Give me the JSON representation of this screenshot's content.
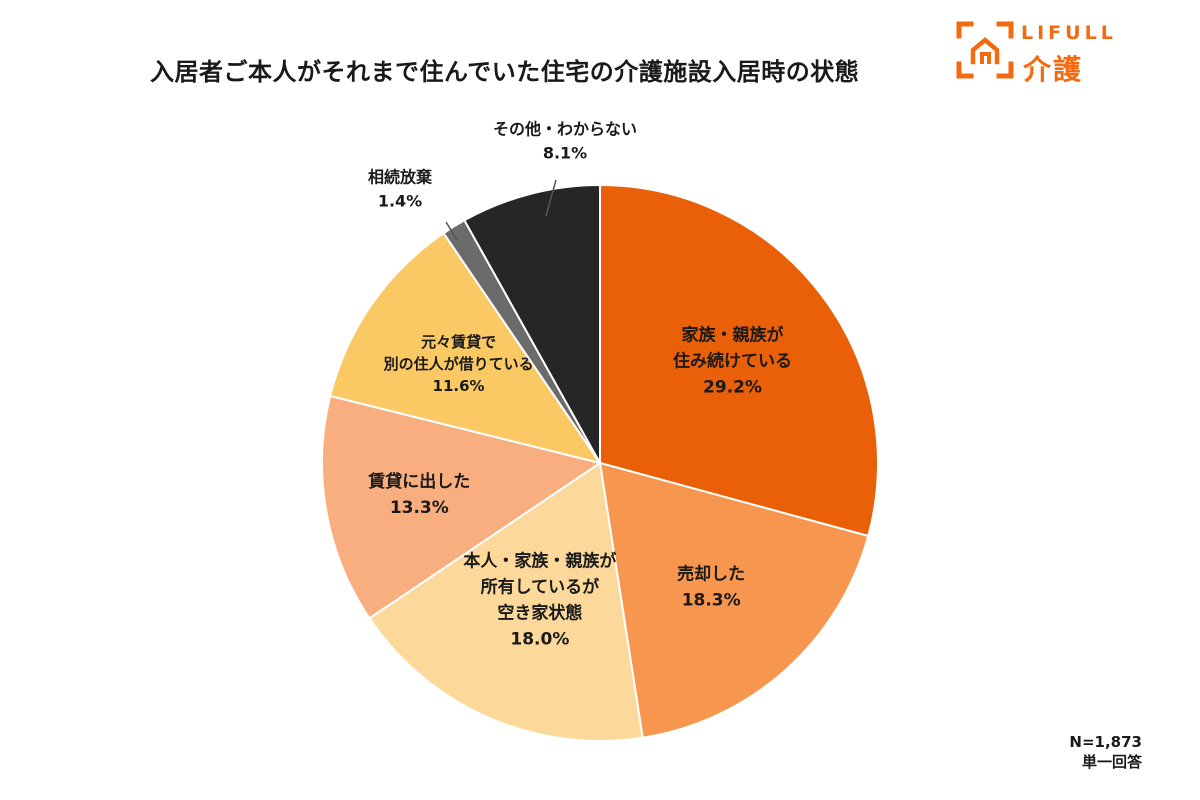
{
  "header": {
    "title": "入居者ご本人がそれまで住んでいた住宅の介護施設入居時の状態"
  },
  "logo": {
    "brand_en": "LIFULL",
    "brand_jp": "介護",
    "icon": "house-bracket-icon",
    "color": "#F36A10"
  },
  "footer": {
    "sample_size": "N=1,873",
    "answer_type": "単一回答"
  },
  "chart_data": {
    "type": "pie",
    "start": "12 o'clock",
    "direction": "clockwise",
    "slices": [
      {
        "lines": [
          "家族・親族が",
          "住み続けている"
        ],
        "value": 29.2,
        "value_label": "29.2%",
        "color": "#EA6008",
        "label_position": "inside"
      },
      {
        "lines": [
          "売却した"
        ],
        "value": 18.3,
        "value_label": "18.3%",
        "color": "#F7964E",
        "label_position": "inside"
      },
      {
        "lines": [
          "本人・家族・親族が",
          "所有しているが",
          "空き家状態"
        ],
        "value": 18.0,
        "value_label": "18.0%",
        "color": "#FCD99A",
        "label_position": "inside"
      },
      {
        "lines": [
          "賃貸に出した"
        ],
        "value": 13.3,
        "value_label": "13.3%",
        "color": "#F9AE80",
        "label_position": "inside"
      },
      {
        "lines": [
          "元々賃貸で",
          "別の住人が借りている"
        ],
        "value": 11.6,
        "value_label": "11.6%",
        "color": "#FBC964",
        "label_position": "inside"
      },
      {
        "lines": [
          "相続放棄"
        ],
        "value": 1.4,
        "value_label": "1.4%",
        "color": "#6B6B6B",
        "label_position": "outside"
      },
      {
        "lines": [
          "その他・わからない"
        ],
        "value": 8.1,
        "value_label": "8.1%",
        "color": "#262626",
        "label_position": "outside"
      }
    ]
  }
}
